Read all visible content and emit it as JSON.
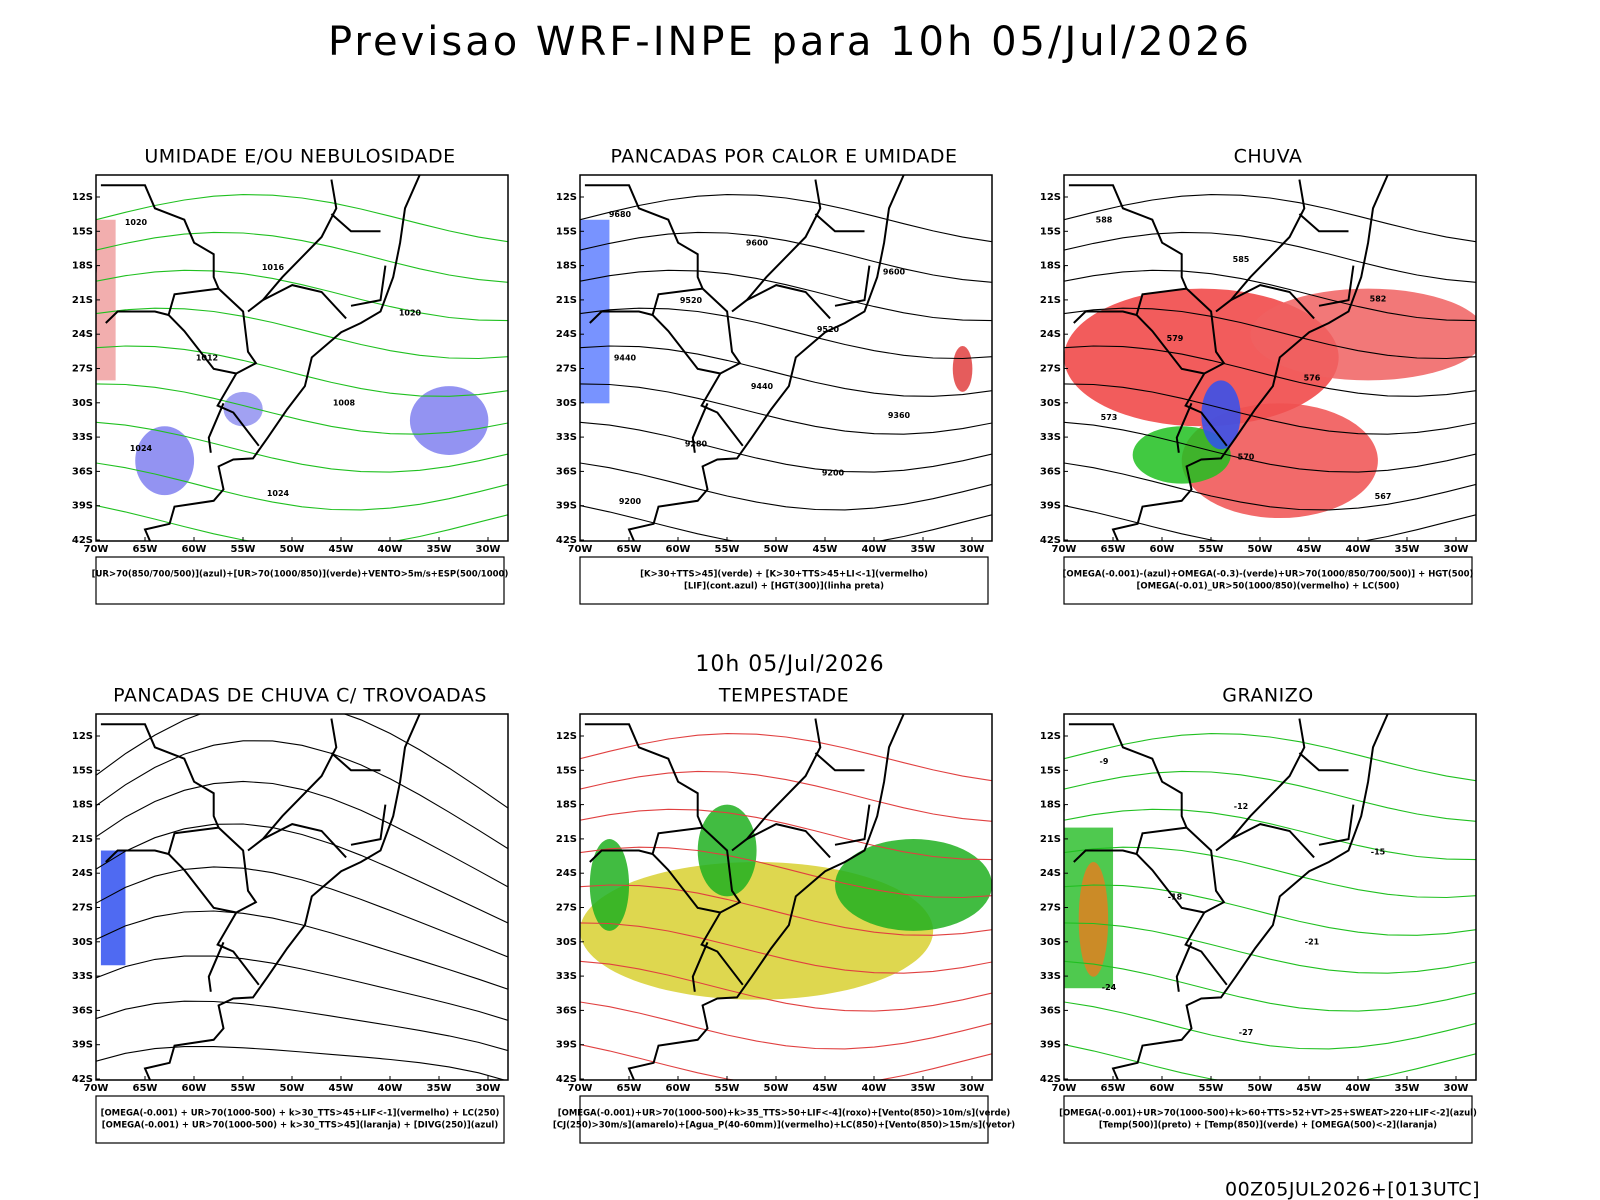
{
  "header": {
    "title": "Previsao WRF-INPE  para 10h 05/Jul/2026",
    "middle_label": "10h 05/Jul/2026",
    "footer": "00Z05JUL2026+[013UTC]"
  },
  "axes": {
    "lat_labels": [
      "12S",
      "15S",
      "18S",
      "21S",
      "24S",
      "27S",
      "30S",
      "33S",
      "36S",
      "39S",
      "42S"
    ],
    "lon_labels": [
      "70W",
      "65W",
      "60W",
      "55W",
      "50W",
      "45W",
      "40W",
      "35W",
      "30W"
    ]
  },
  "panels": [
    {
      "title": "UMIDADE E/OU NEBULOSIDADE",
      "legend": [
        "[UR>70(850/700/500)](azul)+[UR>70(1000/850)](verde)+VENTO>5m/s+ESP(500/1000)"
      ],
      "contour_labels": [
        "1020",
        "1016",
        "1020",
        "1012",
        "1008",
        "1024",
        "1024"
      ]
    },
    {
      "title": "PANCADAS POR CALOR E UMIDADE",
      "legend": [
        "[K>30+TTS>45](verde) + [K>30+TTS>45+LI<-1](vermelho)",
        "[LIF](cont.azul) + [HGT(300)](linha preta)"
      ],
      "contour_labels": [
        "9680",
        "9600",
        "9600",
        "9520",
        "9520",
        "9440",
        "9440",
        "9360",
        "9280",
        "9200",
        "9200"
      ]
    },
    {
      "title": "CHUVA",
      "legend": [
        "[OMEGA(-0.001)-(azul)+OMEGA(-0.3)-(verde)+UR>70(1000/850/700/500)] + HGT(500)",
        "[OMEGA(-0.01)_UR>50(1000/850)(vermelho) + LC(500)"
      ],
      "contour_labels": [
        "588",
        "585",
        "582",
        "579",
        "576",
        "573",
        "570",
        "567"
      ]
    },
    {
      "title": "PANCADAS DE CHUVA C/ TROVOADAS",
      "legend": [
        "[OMEGA(-0.001) + UR>70(1000-500) + k>30_TTS>45+LIF<-1](vermelho) + LC(250)",
        "[OMEGA(-0.001) + UR>70(1000-500) + k>30_TTS>45](laranja) + [DIVG(250)](azul)"
      ],
      "contour_labels": []
    },
    {
      "title": "TEMPESTADE",
      "legend": [
        "[OMEGA(-0.001)+UR>70(1000-500)+k>35_TTS>50+LIF<-4](roxo)+[Vento(850)>10m/s](verde)",
        "[CJ(250)>30m/s](amarelo)+[Agua_P(40-60mm)](vermelho)+LC(850)+[Vento(850)>15m/s](vetor)"
      ],
      "contour_labels": []
    },
    {
      "title": "GRANIZO",
      "legend": [
        "[OMEGA(-0.001)+UR>70(1000-500)+k>60+TTS>52+VT>25+SWEAT>220+LIF<-2](azul)",
        "[Temp(500)](preto) + [Temp(850)](verde) + [OMEGA(500)<-2](laranja)"
      ],
      "contour_labels": [
        "-9",
        "-12",
        "-15",
        "-18",
        "-21",
        "-24",
        "-27"
      ]
    }
  ]
}
